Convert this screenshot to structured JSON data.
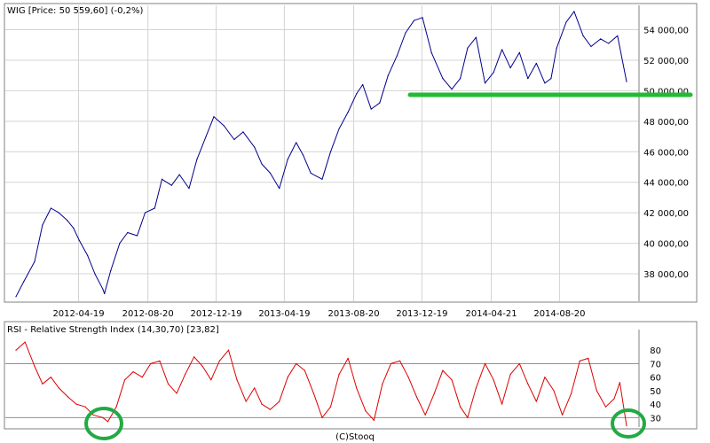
{
  "chart_data": [
    {
      "type": "line",
      "title": "WIG [Price: 50 559,60] (-0,2%)",
      "x_tick_labels": [
        "2012-04-19",
        "2012-08-20",
        "2012-12-19",
        "2013-04-19",
        "2013-08-20",
        "2013-12-19",
        "2014-04-21",
        "2014-08-20"
      ],
      "y_tick_labels": [
        "38 000,00",
        "40 000,00",
        "42 000,00",
        "44 000,00",
        "46 000,00",
        "48 000,00",
        "50 000,00",
        "52 000,00",
        "54 000,00"
      ],
      "ylim": [
        36200,
        55600
      ],
      "grid": true,
      "series": [
        {
          "color": "#00008b",
          "x": [
            "2011-12-30",
            "2012-01-13",
            "2012-02-01",
            "2012-02-15",
            "2012-03-01",
            "2012-03-15",
            "2012-03-30",
            "2012-04-10",
            "2012-04-20",
            "2012-05-05",
            "2012-05-18",
            "2012-06-01",
            "2012-06-04",
            "2012-06-15",
            "2012-07-01",
            "2012-07-15",
            "2012-08-01",
            "2012-08-15",
            "2012-09-01",
            "2012-09-14",
            "2012-10-01",
            "2012-10-15",
            "2012-11-01",
            "2012-11-15",
            "2012-12-01",
            "2012-12-15",
            "2013-01-02",
            "2013-01-20",
            "2013-02-05",
            "2013-02-25",
            "2013-03-10",
            "2013-03-25",
            "2013-04-10",
            "2013-04-25",
            "2013-05-10",
            "2013-05-22",
            "2013-06-05",
            "2013-06-25",
            "2013-07-10",
            "2013-07-25",
            "2013-08-10",
            "2013-08-25",
            "2013-09-05",
            "2013-09-20",
            "2013-10-05",
            "2013-10-20",
            "2013-11-05",
            "2013-11-20",
            "2013-12-05",
            "2013-12-20",
            "2014-01-05",
            "2014-01-25",
            "2014-02-10",
            "2014-02-25",
            "2014-03-10",
            "2014-03-25",
            "2014-04-10",
            "2014-04-25",
            "2014-05-10",
            "2014-05-25",
            "2014-06-10",
            "2014-06-25",
            "2014-07-10",
            "2014-07-25",
            "2014-08-05",
            "2014-08-15",
            "2014-09-01",
            "2014-09-15",
            "2014-10-01",
            "2014-10-15",
            "2014-11-01",
            "2014-11-15",
            "2014-12-01",
            "2014-12-17"
          ],
          "values": [
            36500,
            37500,
            38800,
            41200,
            42300,
            42000,
            41500,
            41000,
            40200,
            39200,
            38000,
            37000,
            36700,
            38200,
            40000,
            40700,
            40500,
            42000,
            42300,
            44200,
            43800,
            44500,
            43600,
            45500,
            47000,
            48300,
            47700,
            46800,
            47300,
            46300,
            45200,
            44600,
            43600,
            45500,
            46600,
            45800,
            44600,
            44200,
            46000,
            47500,
            48600,
            49800,
            50400,
            48800,
            49200,
            51000,
            52300,
            53800,
            54600,
            54800,
            52500,
            50800,
            50100,
            50800,
            52800,
            53500,
            50500,
            51200,
            52700,
            51500,
            52500,
            50800,
            51800,
            50500,
            50800,
            52800,
            54500,
            55200,
            53600,
            52900,
            53400,
            53100,
            53600,
            50600
          ]
        }
      ]
    },
    {
      "type": "line",
      "title": "RSI - Relative Strength Index (14,30,70) [23,82]",
      "y_tick_labels": [
        "30",
        "40",
        "50",
        "60",
        "70",
        "80"
      ],
      "ylim": [
        23,
        90
      ],
      "reference_lines": [
        30,
        70
      ],
      "series": [
        {
          "color": "#dd0000",
          "x": [
            "2011-12-30",
            "2012-01-15",
            "2012-02-01",
            "2012-02-15",
            "2012-03-01",
            "2012-03-15",
            "2012-04-01",
            "2012-04-15",
            "2012-05-01",
            "2012-05-15",
            "2012-06-01",
            "2012-06-10",
            "2012-06-25",
            "2012-07-10",
            "2012-07-25",
            "2012-08-10",
            "2012-08-25",
            "2012-09-10",
            "2012-09-25",
            "2012-10-10",
            "2012-10-25",
            "2012-11-10",
            "2012-11-25",
            "2012-12-10",
            "2012-12-25",
            "2013-01-10",
            "2013-01-25",
            "2013-02-10",
            "2013-02-25",
            "2013-03-10",
            "2013-03-25",
            "2013-04-10",
            "2013-04-25",
            "2013-05-10",
            "2013-05-25",
            "2013-06-10",
            "2013-06-25",
            "2013-07-10",
            "2013-07-25",
            "2013-08-10",
            "2013-08-25",
            "2013-09-10",
            "2013-09-25",
            "2013-10-10",
            "2013-10-25",
            "2013-11-10",
            "2013-11-25",
            "2013-12-10",
            "2013-12-25",
            "2014-01-10",
            "2014-01-25",
            "2014-02-10",
            "2014-02-25",
            "2014-03-10",
            "2014-03-25",
            "2014-04-10",
            "2014-04-25",
            "2014-05-10",
            "2014-05-25",
            "2014-06-10",
            "2014-06-25",
            "2014-07-10",
            "2014-07-25",
            "2014-08-10",
            "2014-08-25",
            "2014-09-10",
            "2014-09-25",
            "2014-10-10",
            "2014-10-25",
            "2014-11-10",
            "2014-11-25",
            "2014-12-05",
            "2014-12-17"
          ],
          "values": [
            80,
            86,
            68,
            55,
            60,
            52,
            45,
            40,
            38,
            32,
            30,
            27,
            38,
            58,
            64,
            60,
            70,
            72,
            55,
            48,
            62,
            75,
            68,
            58,
            72,
            80,
            58,
            42,
            52,
            40,
            36,
            42,
            60,
            70,
            65,
            48,
            30,
            38,
            62,
            74,
            52,
            35,
            28,
            55,
            70,
            72,
            60,
            45,
            32,
            48,
            65,
            58,
            38,
            30,
            52,
            70,
            58,
            40,
            62,
            70,
            55,
            42,
            60,
            50,
            32,
            48,
            72,
            74,
            50,
            38,
            44,
            56,
            24
          ]
        }
      ]
    }
  ],
  "footer": {
    "copyright": "(C)Stooq"
  }
}
